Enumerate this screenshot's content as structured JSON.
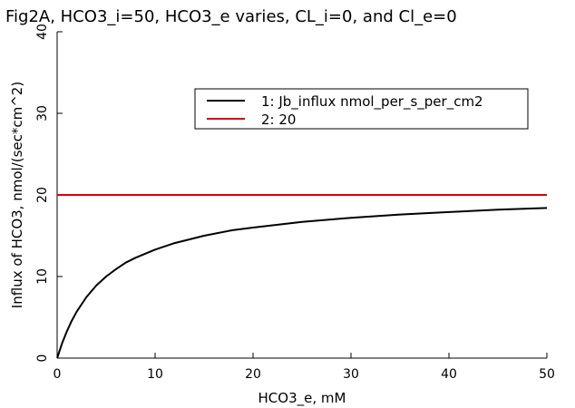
{
  "chart_data": {
    "type": "line",
    "title": "Fig2A, HCO3_i=50, HCO3_e varies, CL_i=0, and Cl_e=0",
    "xlabel": "HCO3_e, mM",
    "ylabel": "Influx of HCO3, nmol/(sec*cm^2)",
    "xlim": [
      0,
      50
    ],
    "ylim": [
      0,
      40
    ],
    "xticks": [
      0,
      10,
      20,
      30,
      40,
      50
    ],
    "yticks": [
      0,
      10,
      20,
      30,
      40
    ],
    "grid": false,
    "legend_position": "top-right",
    "series": [
      {
        "name": "1: Jb_influx nmol_per_s_per_cm2",
        "color": "#000000",
        "x": [
          0,
          0.5,
          1,
          1.5,
          2,
          3,
          4,
          5,
          6,
          7,
          8,
          10,
          12,
          15,
          18,
          20,
          25,
          30,
          35,
          40,
          45,
          50
        ],
        "y": [
          0,
          1.8,
          3.3,
          4.6,
          5.7,
          7.5,
          8.9,
          10.0,
          10.9,
          11.7,
          12.3,
          13.3,
          14.1,
          15.0,
          15.7,
          16.0,
          16.7,
          17.2,
          17.6,
          17.9,
          18.2,
          18.4
        ]
      },
      {
        "name": "2: 20",
        "color": "#dd0000",
        "x": [
          0,
          50
        ],
        "y": [
          20,
          20
        ]
      }
    ]
  }
}
